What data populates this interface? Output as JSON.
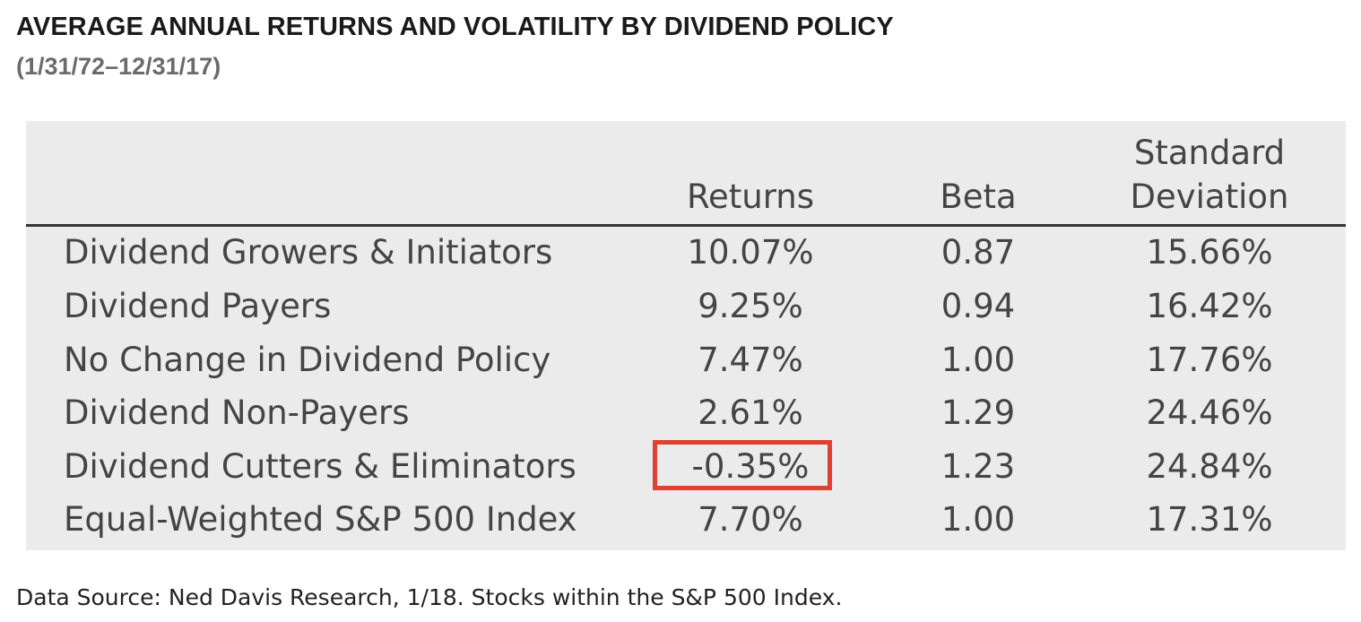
{
  "title": "AVERAGE ANNUAL RETURNS AND VOLATILITY BY DIVIDEND POLICY",
  "subtitle": "(1/31/72–12/31/17)",
  "source": "Data Source: Ned Davis Research, 1/18. Stocks within the S&P 500 Index.",
  "highlight_color": "#e0412f",
  "chart_data": {
    "type": "table",
    "columns": [
      "Returns",
      "Beta",
      "Standard Deviation"
    ],
    "column_header_lines": {
      "sd_line1": "Standard",
      "sd_line2": "Deviation"
    },
    "rows": [
      {
        "label": "Dividend Growers & Initiators",
        "returns": "10.07%",
        "beta": "0.87",
        "sd": "15.66%"
      },
      {
        "label": "Dividend Payers",
        "returns": "9.25%",
        "beta": "0.94",
        "sd": "16.42%"
      },
      {
        "label": "No Change in Dividend Policy",
        "returns": "7.47%",
        "beta": "1.00",
        "sd": "17.76%"
      },
      {
        "label": "Dividend Non-Payers",
        "returns": "2.61%",
        "beta": "1.29",
        "sd": "24.46%"
      },
      {
        "label": "Dividend Cutters & Eliminators",
        "returns": "-0.35%",
        "beta": "1.23",
        "sd": "24.84%",
        "highlighted": true
      },
      {
        "label": "Equal-Weighted S&P 500 Index",
        "returns": "7.70%",
        "beta": "1.00",
        "sd": "17.31%"
      }
    ]
  }
}
